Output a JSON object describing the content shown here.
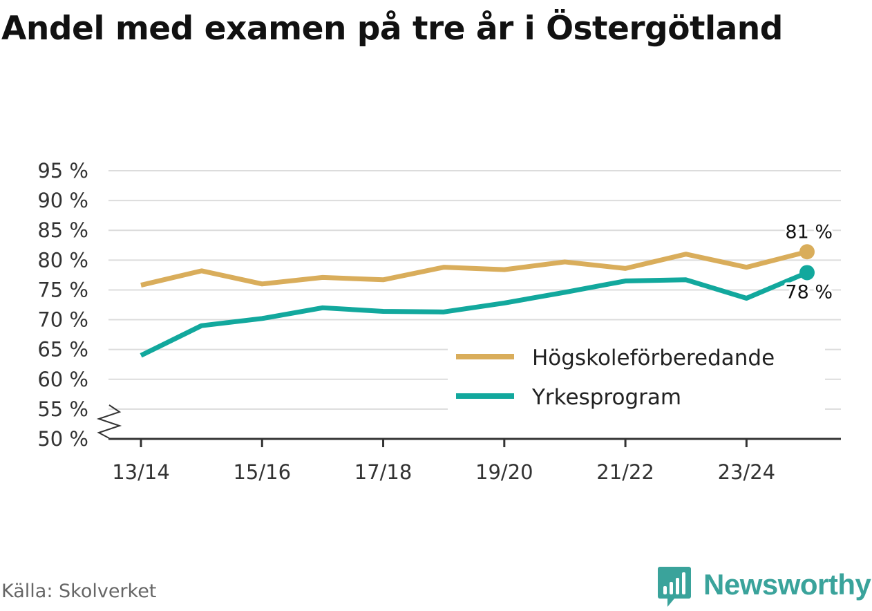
{
  "title": "Andel med examen på tre år i Östergötland",
  "source": "Källa: Skolverket",
  "brand": {
    "name": "Newsworthy",
    "icon": "newsworthy-logo-icon",
    "color": "#3aa39b"
  },
  "chart_data": {
    "type": "line",
    "title": "Andel med examen på tre år i Östergötland",
    "xlabel": "",
    "ylabel": "",
    "ylim": [
      50,
      95
    ],
    "y_break": true,
    "y_ticks": [
      50,
      55,
      60,
      65,
      70,
      75,
      80,
      85,
      90,
      95
    ],
    "y_tick_labels": [
      "50 %",
      "55 %",
      "60 %",
      "65 %",
      "70 %",
      "75 %",
      "80 %",
      "85 %",
      "90 %",
      "95 %"
    ],
    "x": [
      "13/14",
      "14/15",
      "15/16",
      "16/17",
      "17/18",
      "18/19",
      "19/20",
      "20/21",
      "21/22",
      "22/23",
      "23/24",
      "24/25"
    ],
    "x_tick_labels": [
      "13/14",
      "15/16",
      "17/18",
      "19/20",
      "21/22",
      "23/24"
    ],
    "grid": true,
    "legend_position": "bottom-right",
    "series": [
      {
        "name": "Högskoleförberedande",
        "color": "#d9ad5b",
        "values": [
          75.8,
          78.2,
          76.0,
          77.1,
          76.7,
          78.8,
          78.4,
          79.7,
          78.6,
          81.0,
          78.8,
          81.4
        ],
        "end_label": "81 %"
      },
      {
        "name": "Yrkesprogram",
        "color": "#12a89d",
        "values": [
          64.0,
          69.0,
          70.2,
          72.0,
          71.4,
          71.3,
          72.8,
          74.6,
          76.5,
          76.7,
          73.6,
          77.9
        ],
        "end_label": "78 %"
      }
    ]
  }
}
